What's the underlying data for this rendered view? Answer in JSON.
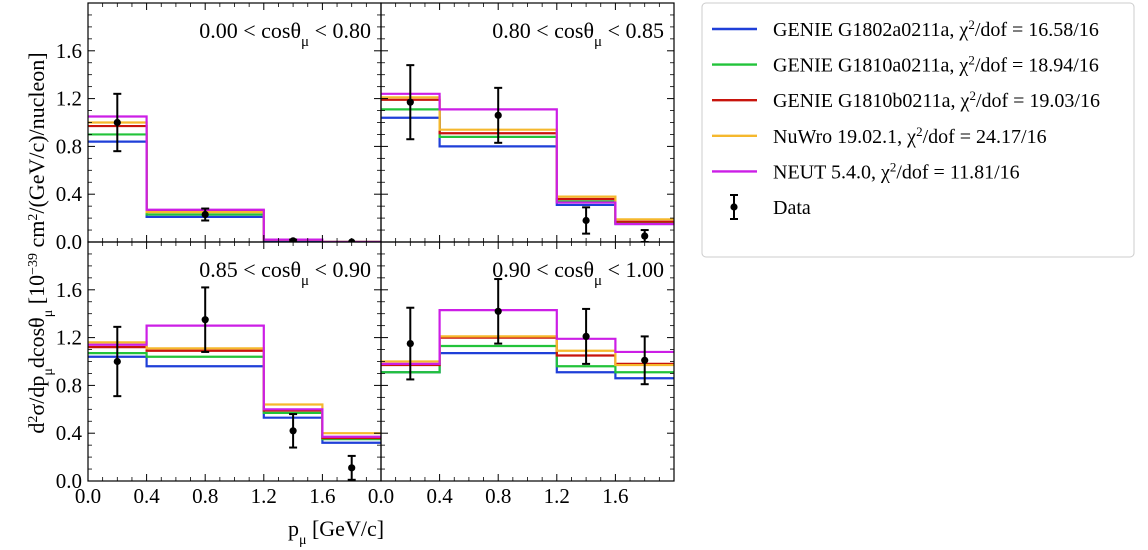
{
  "figure": {
    "ylabel": "d²σ/dp_μdcosθ_μ [10⁻³⁹ cm²/(GeV/c)/nucleon]",
    "xlabel": "p_μ [GeV/c]"
  },
  "chart_data": {
    "type": "line",
    "drawstyle": "steps",
    "x_bin_edges": [
      0.0,
      0.4,
      1.2,
      1.6,
      2.0
    ],
    "xlim": [
      0.0,
      2.0
    ],
    "ylim": [
      0.0,
      2.0
    ],
    "xticks": [
      0.0,
      0.4,
      0.8,
      1.2,
      1.6
    ],
    "xtick_labels": [
      "0.0",
      "0.4",
      "0.8",
      "1.2",
      "1.6"
    ],
    "yticks": [
      0.0,
      0.4,
      0.8,
      1.2,
      1.6
    ],
    "ytick_labels": [
      "0.0",
      "0.4",
      "0.8",
      "1.2",
      "1.6"
    ],
    "legend_position": "outside right, top",
    "series_legend": [
      {
        "model": "GENIE G1802a0211a",
        "chi2": "16.58/16",
        "color": "#1f3fd8"
      },
      {
        "model": "GENIE G1810a0211a",
        "chi2": "18.94/16",
        "color": "#22c33a"
      },
      {
        "model": "GENIE G1810b0211a",
        "chi2": "19.03/16",
        "color": "#c8140c"
      },
      {
        "model": "NuWro 19.02.1",
        "chi2": "24.17/16",
        "color": "#f5b82d"
      },
      {
        "model": "NEUT 5.4.0",
        "chi2": "11.81/16",
        "color": "#cc1ee6"
      }
    ],
    "data_legend": "Data",
    "data_color": "#000000",
    "panels": [
      {
        "label_low": "0.00",
        "label_high": "0.80",
        "series": [
          {
            "values": [
              0.84,
              0.21,
              0.01,
              0.0
            ]
          },
          {
            "values": [
              0.9,
              0.23,
              0.02,
              0.0
            ]
          },
          {
            "values": [
              0.97,
              0.26,
              0.02,
              0.0
            ]
          },
          {
            "values": [
              1.0,
              0.25,
              0.02,
              0.0
            ]
          },
          {
            "values": [
              1.05,
              0.27,
              0.02,
              0.0
            ]
          }
        ],
        "data": [
          {
            "x": 0.2,
            "y": 1.0,
            "err": 0.24
          },
          {
            "x": 0.8,
            "y": 0.23,
            "err": 0.05
          },
          {
            "x": 1.4,
            "y": 0.01,
            "err": 0.01
          },
          {
            "x": 1.8,
            "y": 0.0,
            "err": 0.0
          }
        ]
      },
      {
        "label_low": "0.80",
        "label_high": "0.85",
        "series": [
          {
            "values": [
              1.04,
              0.8,
              0.31,
              0.15
            ]
          },
          {
            "values": [
              1.11,
              0.88,
              0.34,
              0.16
            ]
          },
          {
            "values": [
              1.19,
              0.91,
              0.36,
              0.17
            ]
          },
          {
            "values": [
              1.21,
              0.94,
              0.38,
              0.19
            ]
          },
          {
            "values": [
              1.24,
              1.11,
              0.33,
              0.15
            ]
          }
        ],
        "data": [
          {
            "x": 0.2,
            "y": 1.17,
            "err": 0.31
          },
          {
            "x": 0.8,
            "y": 1.06,
            "err": 0.23
          },
          {
            "x": 1.4,
            "y": 0.18,
            "err": 0.11
          },
          {
            "x": 1.8,
            "y": 0.05,
            "err": 0.05
          }
        ]
      },
      {
        "label_low": "0.85",
        "label_high": "0.90",
        "series": [
          {
            "values": [
              1.04,
              0.96,
              0.53,
              0.32
            ]
          },
          {
            "values": [
              1.07,
              1.04,
              0.57,
              0.35
            ]
          },
          {
            "values": [
              1.12,
              1.09,
              0.59,
              0.36
            ]
          },
          {
            "values": [
              1.16,
              1.11,
              0.64,
              0.4
            ]
          },
          {
            "values": [
              1.14,
              1.3,
              0.6,
              0.37
            ]
          }
        ],
        "data": [
          {
            "x": 0.2,
            "y": 1.0,
            "err": 0.29
          },
          {
            "x": 0.8,
            "y": 1.35,
            "err": 0.27
          },
          {
            "x": 1.4,
            "y": 0.42,
            "err": 0.14
          },
          {
            "x": 1.8,
            "y": 0.11,
            "err": 0.1
          }
        ]
      },
      {
        "label_low": "0.90",
        "label_high": "1.00",
        "series": [
          {
            "values": [
              0.91,
              1.07,
              0.91,
              0.86
            ]
          },
          {
            "values": [
              0.91,
              1.13,
              0.96,
              0.91
            ]
          },
          {
            "values": [
              0.97,
              1.2,
              1.05,
              0.98
            ]
          },
          {
            "values": [
              1.0,
              1.21,
              1.09,
              0.97
            ]
          },
          {
            "values": [
              0.98,
              1.43,
              1.19,
              1.08
            ]
          }
        ],
        "data": [
          {
            "x": 0.2,
            "y": 1.15,
            "err": 0.3
          },
          {
            "x": 0.8,
            "y": 1.42,
            "err": 0.27
          },
          {
            "x": 1.4,
            "y": 1.21,
            "err": 0.23
          },
          {
            "x": 1.8,
            "y": 1.01,
            "err": 0.2
          }
        ]
      }
    ]
  }
}
